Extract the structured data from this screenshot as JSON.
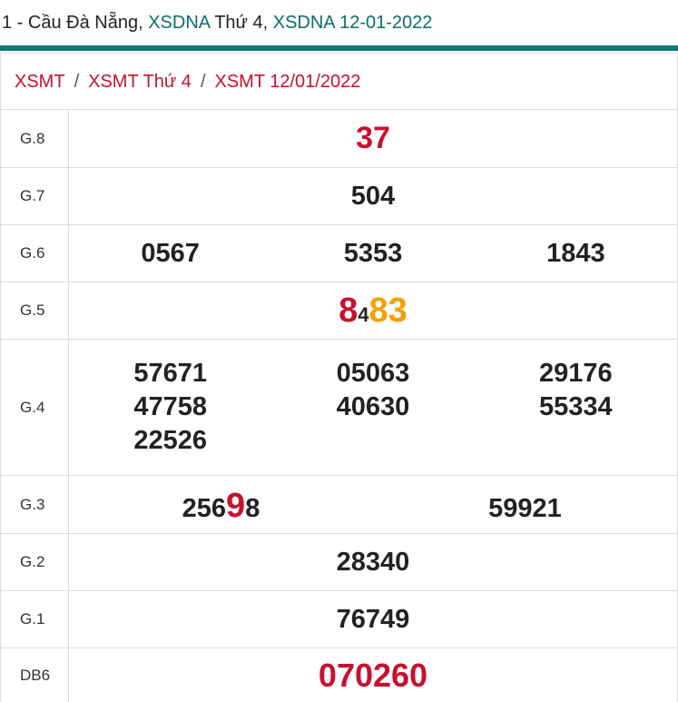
{
  "header": {
    "parts": [
      "1 - Cầu Đà Nẵng, ",
      "XSDNA",
      " Thứ 4, ",
      "XSDNA 12-01-2022"
    ]
  },
  "breadcrumb": {
    "items": [
      "XSMT",
      "XSMT Thứ 4",
      "XSMT 12/01/2022"
    ],
    "separator": "/"
  },
  "table": {
    "rows": [
      {
        "label": "G.8",
        "numbers": [
          "37"
        ]
      },
      {
        "label": "G.7",
        "numbers": [
          "504"
        ]
      },
      {
        "label": "G.6",
        "numbers": [
          "0567",
          "5353",
          "1843"
        ]
      },
      {
        "label": "G.5",
        "numbers": [
          [
            "8",
            "4",
            "83"
          ]
        ]
      },
      {
        "label": "G.4",
        "numbers": [
          "57671",
          "05063",
          "29176",
          "47758",
          "40630",
          "55334",
          "22526"
        ]
      },
      {
        "label": "G.3",
        "numbers": [
          [
            "256",
            "9",
            "8"
          ],
          "59921"
        ]
      },
      {
        "label": "G.2",
        "numbers": [
          "28340"
        ]
      },
      {
        "label": "G.1",
        "numbers": [
          "76749"
        ]
      },
      {
        "label": "DB6",
        "numbers": [
          "070260"
        ]
      }
    ]
  }
}
